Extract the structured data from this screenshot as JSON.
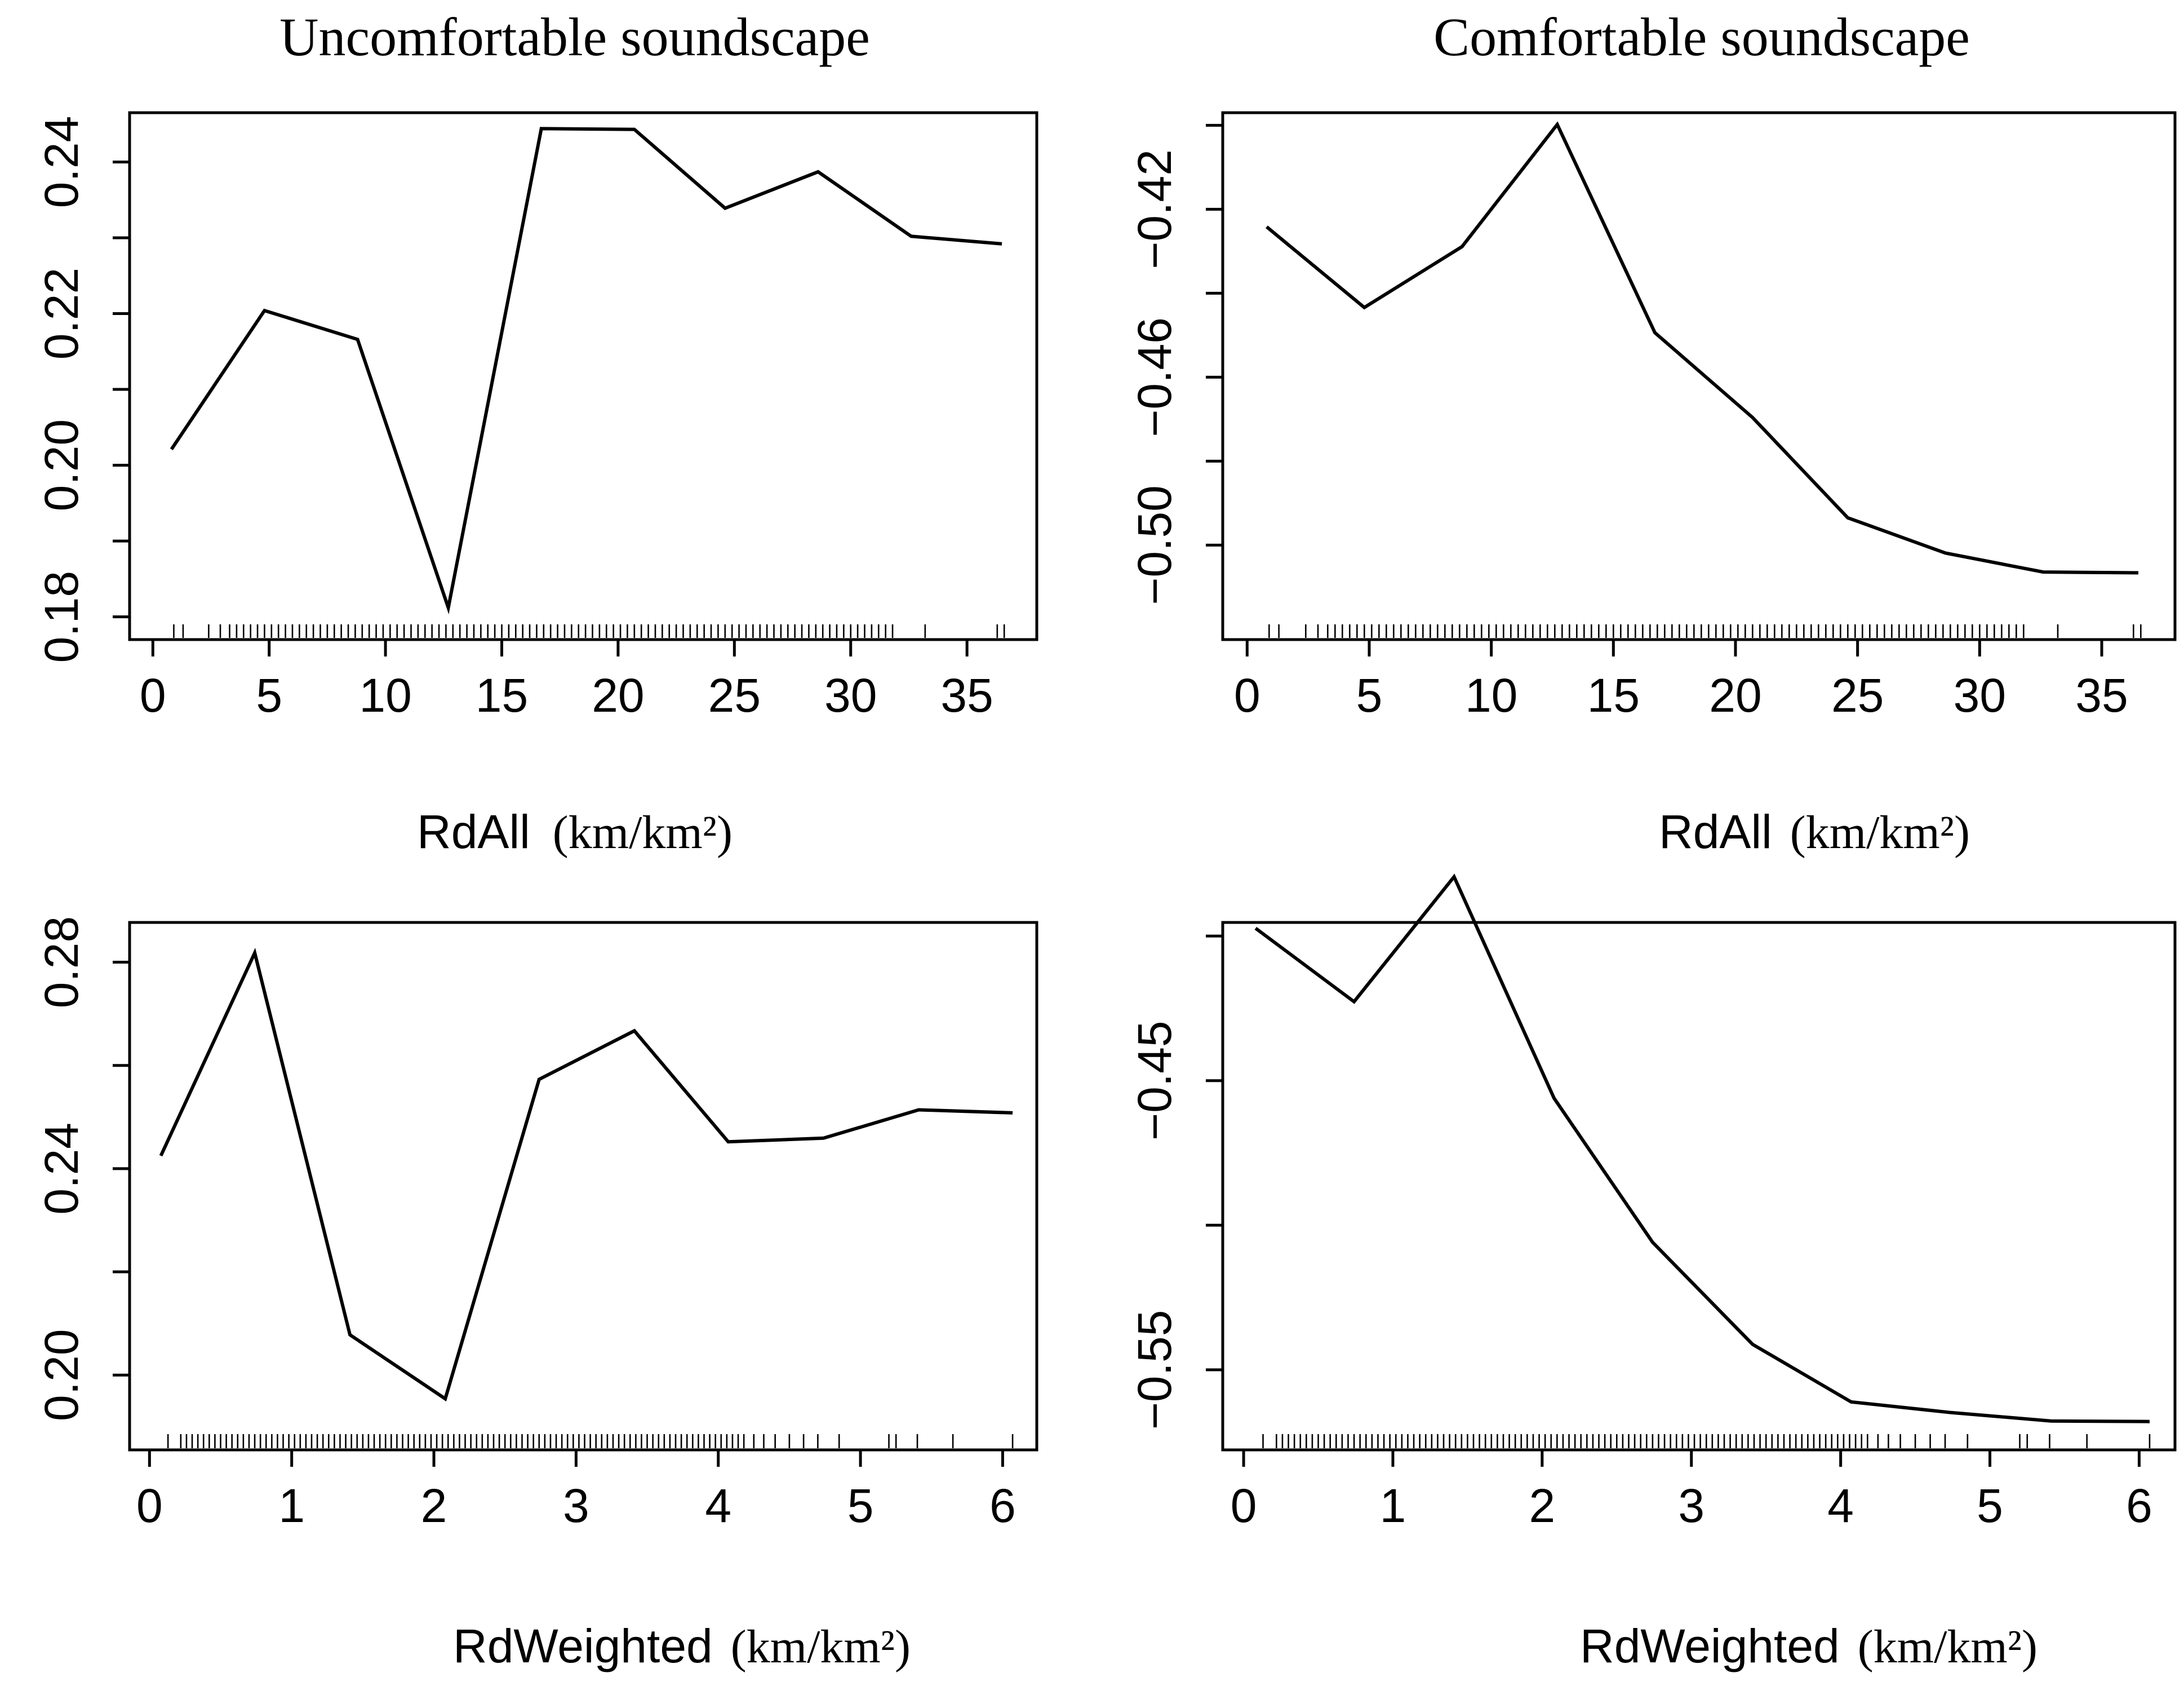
{
  "chart_data": [
    {
      "type": "line",
      "title": "Uncomfortable soundscape",
      "xlabel": "RdAll",
      "xlabel_unit": "(km/km²)",
      "ylabel": "",
      "xlim": [
        -1,
        38
      ],
      "ylim": [
        0.177,
        0.2465
      ],
      "xticks": [
        0,
        5,
        10,
        15,
        20,
        25,
        30,
        35
      ],
      "yticks": [
        0.18,
        0.19,
        0.2,
        0.21,
        0.22,
        0.23,
        0.24
      ],
      "ytick_labels": [
        "0.18",
        "",
        "0.20",
        "",
        "0.22",
        "",
        "0.24"
      ],
      "series": [
        {
          "name": "effect",
          "x": [
            0.8,
            4.8,
            8.8,
            12.7,
            16.7,
            20.7,
            24.6,
            28.6,
            32.6,
            36.5
          ],
          "y": [
            0.2021,
            0.2204,
            0.2166,
            0.1812,
            0.2444,
            0.2443,
            0.2339,
            0.2387,
            0.2302,
            0.2292
          ]
        }
      ],
      "rug": [
        0.9,
        1.3,
        2.4,
        2.9,
        3.3,
        3.6,
        3.9,
        4.2,
        4.5,
        4.8,
        5.1,
        5.4,
        5.7,
        6.0,
        6.3,
        6.6,
        6.9,
        7.2,
        7.5,
        7.8,
        8.1,
        8.4,
        8.7,
        9.0,
        9.3,
        9.6,
        9.9,
        10.2,
        10.5,
        10.8,
        11.1,
        11.4,
        11.7,
        12.0,
        12.3,
        12.6,
        12.9,
        13.2,
        13.5,
        13.8,
        14.1,
        14.4,
        14.7,
        15.0,
        15.3,
        15.6,
        15.9,
        16.2,
        16.5,
        16.8,
        17.1,
        17.4,
        17.7,
        18.0,
        18.3,
        18.6,
        18.9,
        19.2,
        19.5,
        19.8,
        20.1,
        20.4,
        20.7,
        21.0,
        21.3,
        21.6,
        21.9,
        22.2,
        22.5,
        22.8,
        23.1,
        23.4,
        23.7,
        24.0,
        24.3,
        24.6,
        24.9,
        25.2,
        25.5,
        25.8,
        26.1,
        26.4,
        26.7,
        27.0,
        27.3,
        27.6,
        27.9,
        28.2,
        28.5,
        28.8,
        29.1,
        29.4,
        29.7,
        30.0,
        30.3,
        30.6,
        30.9,
        31.2,
        31.5,
        31.8,
        33.2,
        36.3,
        36.6
      ]
    },
    {
      "type": "line",
      "title": "Comfortable soundscape",
      "xlabel": "RdAll",
      "xlabel_unit": "(km/km²)",
      "ylabel": "",
      "xlim": [
        -1,
        38
      ],
      "ylim": [
        -0.5225,
        -0.397
      ],
      "xticks": [
        0,
        5,
        10,
        15,
        20,
        25,
        30,
        35
      ],
      "yticks": [
        -0.5,
        -0.48,
        -0.46,
        -0.44,
        -0.42,
        -0.4
      ],
      "ytick_labels": [
        "−0.50",
        "",
        "−0.46",
        "",
        "−0.42",
        ""
      ],
      "series": [
        {
          "name": "effect",
          "x": [
            0.8,
            4.8,
            8.8,
            12.7,
            16.7,
            20.7,
            24.6,
            28.6,
            32.6,
            36.5
          ],
          "y": [
            -0.4242,
            -0.4434,
            -0.4289,
            -0.3998,
            -0.4494,
            -0.4696,
            -0.4935,
            -0.5019,
            -0.5064,
            -0.5066
          ]
        }
      ],
      "rug": [
        0.9,
        1.3,
        2.4,
        2.9,
        3.3,
        3.6,
        3.9,
        4.2,
        4.5,
        4.8,
        5.1,
        5.4,
        5.7,
        6.0,
        6.3,
        6.6,
        6.9,
        7.2,
        7.5,
        7.8,
        8.1,
        8.4,
        8.7,
        9.0,
        9.3,
        9.6,
        9.9,
        10.2,
        10.5,
        10.8,
        11.1,
        11.4,
        11.7,
        12.0,
        12.3,
        12.6,
        12.9,
        13.2,
        13.5,
        13.8,
        14.1,
        14.4,
        14.7,
        15.0,
        15.3,
        15.6,
        15.9,
        16.2,
        16.5,
        16.8,
        17.1,
        17.4,
        17.7,
        18.0,
        18.3,
        18.6,
        18.9,
        19.2,
        19.5,
        19.8,
        20.1,
        20.4,
        20.7,
        21.0,
        21.3,
        21.6,
        21.9,
        22.2,
        22.5,
        22.8,
        23.1,
        23.4,
        23.7,
        24.0,
        24.3,
        24.6,
        24.9,
        25.2,
        25.5,
        25.8,
        26.1,
        26.4,
        26.7,
        27.0,
        27.3,
        27.6,
        27.9,
        28.2,
        28.5,
        28.8,
        29.1,
        29.4,
        29.7,
        30.0,
        30.3,
        30.6,
        30.9,
        31.2,
        31.5,
        31.8,
        33.2,
        36.3,
        36.6
      ]
    },
    {
      "type": "line",
      "title": "",
      "xlabel": "RdWeighted",
      "xlabel_unit": "(km/km²)",
      "ylabel": "",
      "xlim": [
        -0.14,
        6.24
      ],
      "ylim": [
        0.1855,
        0.2877
      ],
      "xticks": [
        0,
        1,
        2,
        3,
        4,
        5,
        6
      ],
      "yticks": [
        0.2,
        0.22,
        0.24,
        0.26,
        0.28
      ],
      "ytick_labels": [
        "0.20",
        "",
        "0.24",
        "",
        "0.28"
      ],
      "series": [
        {
          "name": "effect",
          "x": [
            0.08,
            0.74,
            1.41,
            2.08,
            2.74,
            3.41,
            4.07,
            4.74,
            5.41,
            6.07
          ],
          "y": [
            0.2425,
            0.2818,
            0.2078,
            0.1954,
            0.2573,
            0.2667,
            0.2452,
            0.2459,
            0.2514,
            0.2508
          ]
        }
      ],
      "rug": [
        0.13,
        0.22,
        0.26,
        0.3,
        0.34,
        0.38,
        0.42,
        0.46,
        0.5,
        0.54,
        0.58,
        0.62,
        0.66,
        0.7,
        0.74,
        0.78,
        0.82,
        0.86,
        0.9,
        0.94,
        0.98,
        1.02,
        1.06,
        1.1,
        1.14,
        1.18,
        1.22,
        1.26,
        1.3,
        1.34,
        1.38,
        1.42,
        1.46,
        1.5,
        1.54,
        1.58,
        1.62,
        1.66,
        1.7,
        1.74,
        1.78,
        1.82,
        1.86,
        1.9,
        1.94,
        1.98,
        2.02,
        2.06,
        2.1,
        2.14,
        2.18,
        2.22,
        2.26,
        2.3,
        2.34,
        2.38,
        2.42,
        2.46,
        2.5,
        2.54,
        2.58,
        2.62,
        2.66,
        2.7,
        2.74,
        2.78,
        2.82,
        2.86,
        2.9,
        2.94,
        2.98,
        3.02,
        3.06,
        3.1,
        3.14,
        3.18,
        3.22,
        3.26,
        3.3,
        3.34,
        3.38,
        3.42,
        3.46,
        3.5,
        3.54,
        3.58,
        3.62,
        3.66,
        3.7,
        3.74,
        3.78,
        3.82,
        3.86,
        3.9,
        3.94,
        3.98,
        4.02,
        4.06,
        4.1,
        4.14,
        4.18,
        4.25,
        4.32,
        4.4,
        4.5,
        4.6,
        4.7,
        4.85,
        5.2,
        5.25,
        5.4,
        5.65,
        6.07
      ]
    },
    {
      "type": "line",
      "title": "",
      "xlabel": "RdWeighted",
      "xlabel_unit": "(km/km²)",
      "ylabel": "",
      "xlim": [
        -0.14,
        6.24
      ],
      "ylim": [
        -0.5777,
        -0.3953
      ],
      "xticks": [
        0,
        1,
        2,
        3,
        4,
        5,
        6
      ],
      "yticks": [
        -0.55,
        -0.5,
        -0.45,
        -0.4
      ],
      "ytick_labels": [
        "−0.55",
        "",
        "−0.45",
        ""
      ],
      "series": [
        {
          "name": "effect",
          "x": [
            0.08,
            0.74,
            1.41,
            2.08,
            2.74,
            3.41,
            4.07,
            4.74,
            5.41,
            6.07
          ],
          "y": [
            -0.3973,
            -0.4227,
            -0.3795,
            -0.4561,
            -0.5059,
            -0.5412,
            -0.5611,
            -0.5648,
            -0.5677,
            -0.5679
          ]
        }
      ],
      "rug": [
        0.13,
        0.22,
        0.26,
        0.3,
        0.34,
        0.38,
        0.42,
        0.46,
        0.5,
        0.54,
        0.58,
        0.62,
        0.66,
        0.7,
        0.74,
        0.78,
        0.82,
        0.86,
        0.9,
        0.94,
        0.98,
        1.02,
        1.06,
        1.1,
        1.14,
        1.18,
        1.22,
        1.26,
        1.3,
        1.34,
        1.38,
        1.42,
        1.46,
        1.5,
        1.54,
        1.58,
        1.62,
        1.66,
        1.7,
        1.74,
        1.78,
        1.82,
        1.86,
        1.9,
        1.94,
        1.98,
        2.02,
        2.06,
        2.1,
        2.14,
        2.18,
        2.22,
        2.26,
        2.3,
        2.34,
        2.38,
        2.42,
        2.46,
        2.5,
        2.54,
        2.58,
        2.62,
        2.66,
        2.7,
        2.74,
        2.78,
        2.82,
        2.86,
        2.9,
        2.94,
        2.98,
        3.02,
        3.06,
        3.1,
        3.14,
        3.18,
        3.22,
        3.26,
        3.3,
        3.34,
        3.38,
        3.42,
        3.46,
        3.5,
        3.54,
        3.58,
        3.62,
        3.66,
        3.7,
        3.74,
        3.78,
        3.82,
        3.86,
        3.9,
        3.94,
        3.98,
        4.02,
        4.06,
        4.1,
        4.14,
        4.18,
        4.25,
        4.32,
        4.4,
        4.5,
        4.6,
        4.7,
        4.85,
        5.2,
        5.25,
        5.4,
        5.65,
        6.07
      ]
    }
  ]
}
